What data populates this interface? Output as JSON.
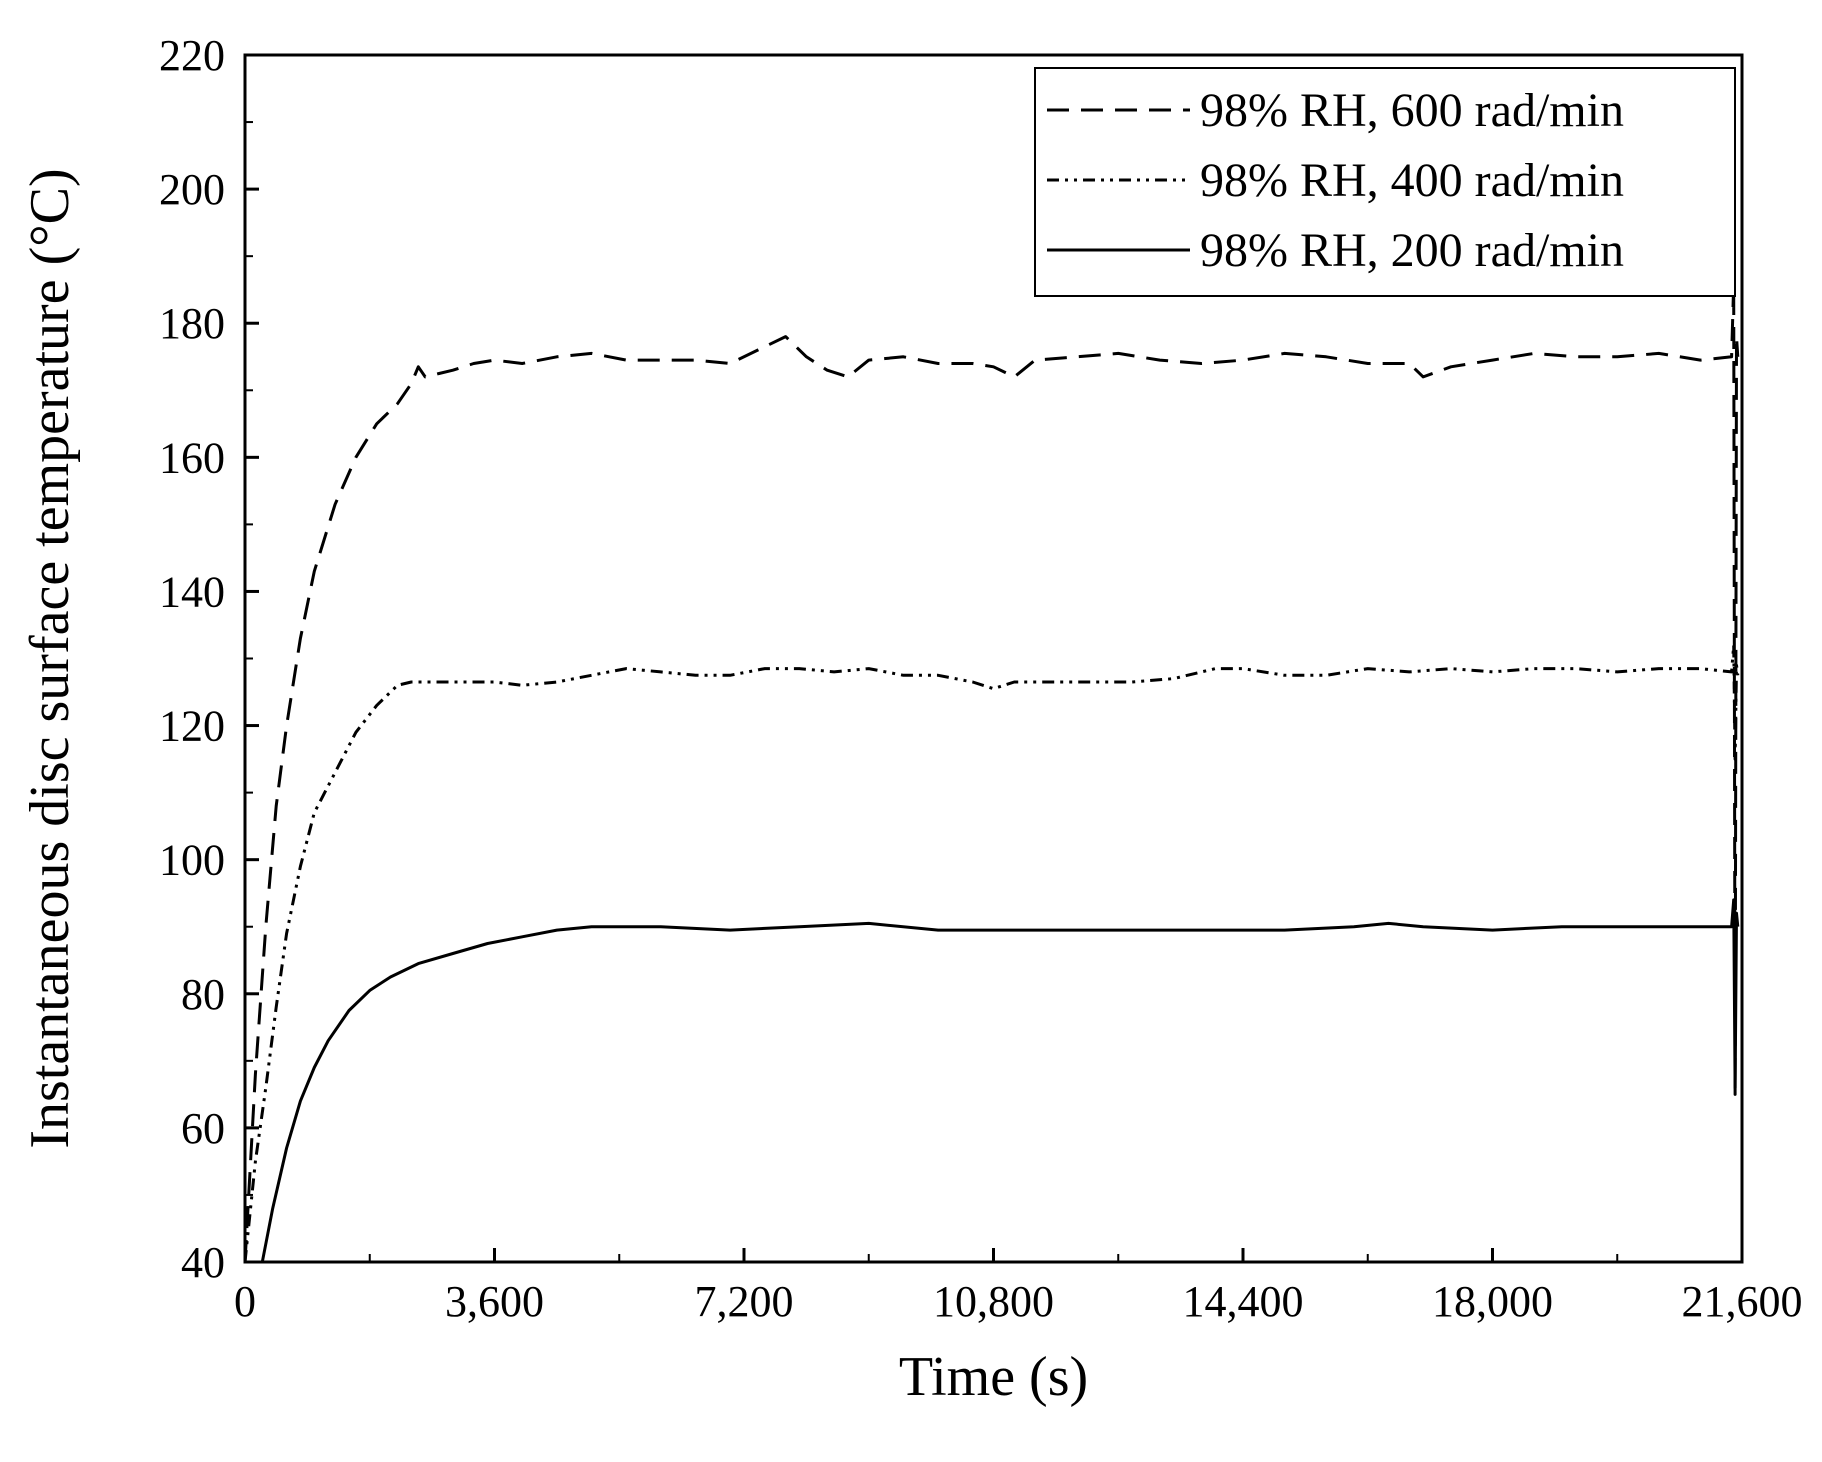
{
  "chart_data": {
    "type": "line",
    "title": "",
    "xlabel": "Time (s)",
    "ylabel": "Instantaneous disc surface temperature (°C)",
    "xlim": [
      0,
      21600
    ],
    "ylim": [
      40,
      220
    ],
    "xticks": [
      0,
      3600,
      7200,
      10800,
      14400,
      18000,
      21600
    ],
    "xtick_labels": [
      "0",
      "3,600",
      "7,200",
      "10,800",
      "14,400",
      "18,000",
      "21,600"
    ],
    "yticks": [
      40,
      60,
      80,
      100,
      120,
      140,
      160,
      180,
      200,
      220
    ],
    "ytick_labels": [
      "40",
      "60",
      "80",
      "100",
      "120",
      "140",
      "160",
      "180",
      "200",
      "220"
    ],
    "grid": false,
    "legend_position": "top-right",
    "series": [
      {
        "name": "98% RH, 600 rad/min",
        "style": "dashed",
        "x": [
          0,
          150,
          300,
          450,
          600,
          800,
          1000,
          1300,
          1600,
          1900,
          2200,
          2400,
          2500,
          2600,
          2800,
          3000,
          3300,
          3600,
          4000,
          4500,
          5000,
          5500,
          6000,
          6500,
          7000,
          7400,
          7800,
          8100,
          8400,
          8700,
          9000,
          9500,
          10000,
          10500,
          10800,
          11100,
          11400,
          12000,
          12600,
          13200,
          13800,
          14400,
          15000,
          15600,
          16200,
          16800,
          17000,
          17400,
          18000,
          18600,
          19200,
          19800,
          20400,
          21000,
          21450,
          21480,
          21500,
          21520,
          21540
        ],
        "values": [
          40,
          68,
          90,
          108,
          120,
          133,
          143,
          153,
          160,
          165,
          168,
          171,
          173.5,
          172,
          172.5,
          173,
          174,
          174.5,
          174,
          175,
          175.5,
          174.5,
          174.5,
          174.5,
          174,
          176,
          178,
          175,
          173,
          172,
          174.5,
          175,
          174,
          174,
          173.5,
          172,
          174.5,
          175,
          175.5,
          174.5,
          174,
          174.5,
          175.5,
          175,
          174,
          174,
          172,
          173.5,
          174.5,
          175.5,
          175,
          175,
          175.5,
          174.5,
          175,
          186,
          65,
          178,
          175
        ]
      },
      {
        "name": "98% RH, 400 rad/min",
        "style": "dash-dot-dot",
        "x": [
          0,
          150,
          300,
          450,
          600,
          800,
          1000,
          1300,
          1600,
          1900,
          2200,
          2400,
          2600,
          3000,
          3600,
          4000,
          4500,
          5000,
          5500,
          6000,
          6500,
          7000,
          7500,
          8000,
          8500,
          9000,
          9500,
          10000,
          10500,
          10800,
          11100,
          11600,
          12200,
          12800,
          13400,
          14000,
          14400,
          15000,
          15600,
          16200,
          16800,
          17400,
          18000,
          18600,
          19200,
          19800,
          20400,
          21000,
          21450,
          21480,
          21500,
          21520,
          21540
        ],
        "values": [
          40,
          55,
          66,
          78,
          89,
          99,
          107,
          113,
          119,
          123,
          126,
          126.5,
          126.5,
          126.5,
          126.5,
          126,
          126.5,
          127.5,
          128.5,
          128,
          127.5,
          127.5,
          128.5,
          128.5,
          128,
          128.5,
          127.5,
          127.5,
          126.5,
          125.5,
          126.5,
          126.5,
          126.5,
          126.5,
          127,
          128.5,
          128.5,
          127.5,
          127.5,
          128.5,
          128,
          128.5,
          128,
          128.5,
          128.5,
          128,
          128.5,
          128.5,
          128,
          132,
          115,
          129,
          127.5
        ]
      },
      {
        "name": "98% RH, 200 rad/min",
        "style": "solid",
        "x": [
          250,
          400,
          600,
          800,
          1000,
          1200,
          1500,
          1800,
          2100,
          2500,
          3000,
          3500,
          4000,
          4500,
          5000,
          6000,
          7000,
          8000,
          9000,
          10000,
          11000,
          12000,
          13000,
          14000,
          15000,
          16000,
          16500,
          17000,
          18000,
          19000,
          20000,
          21000,
          21450,
          21480,
          21500,
          21520,
          21540
        ],
        "values": [
          40,
          48,
          57,
          64,
          69,
          73,
          77.5,
          80.5,
          82.5,
          84.5,
          86,
          87.5,
          88.5,
          89.5,
          90,
          90,
          89.5,
          90,
          90.5,
          89.5,
          89.5,
          89.5,
          89.5,
          89.5,
          89.5,
          90,
          90.5,
          90,
          89.5,
          90,
          90,
          90,
          90,
          94,
          66,
          92,
          90
        ]
      }
    ]
  }
}
